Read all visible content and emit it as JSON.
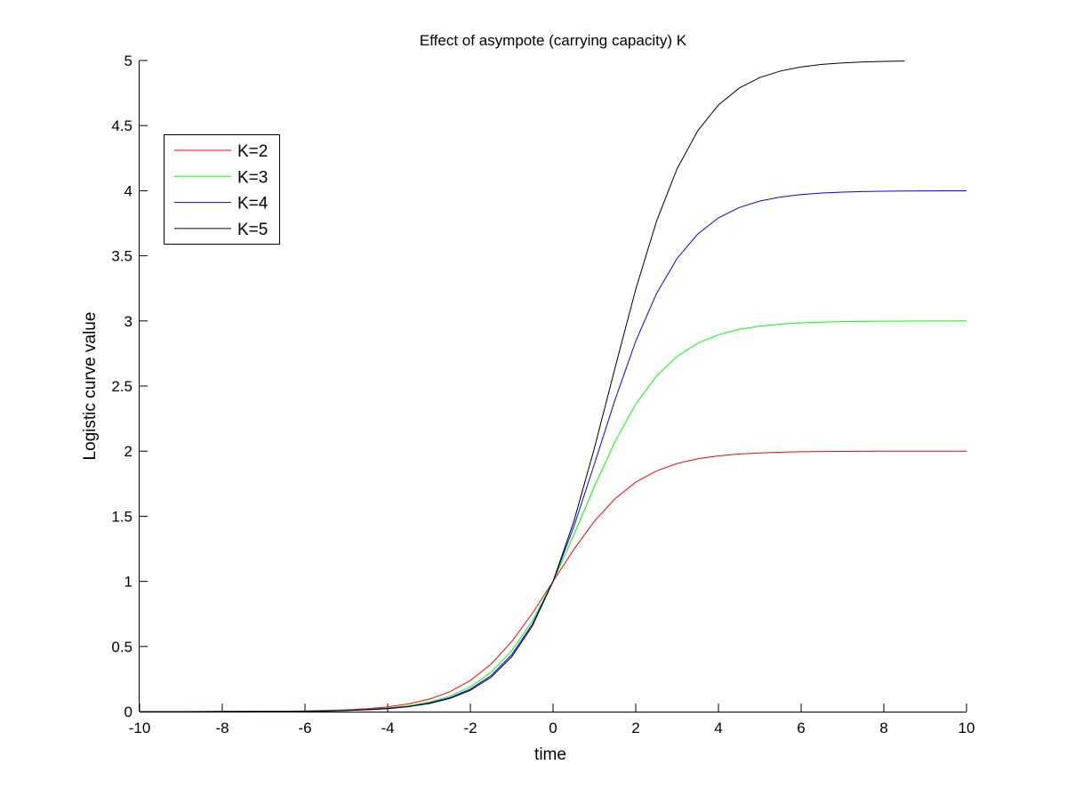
{
  "chart_data": {
    "type": "line",
    "title": "Effect of asympote (carrying capacity) K",
    "xlabel": "time",
    "ylabel": "Logistic curve value",
    "xlim": [
      -10,
      10
    ],
    "ylim": [
      0,
      5
    ],
    "xticks": [
      "-10",
      "-8",
      "-6",
      "-4",
      "-2",
      "0",
      "2",
      "4",
      "6",
      "8",
      "10"
    ],
    "yticks": [
      "0",
      "0.5",
      "1",
      "1.5",
      "2",
      "2.5",
      "3",
      "3.5",
      "4",
      "4.5",
      "5"
    ],
    "grid": false,
    "legend_position": "top-left",
    "x": [
      -10,
      -9.5,
      -9,
      -8.5,
      -8,
      -7.5,
      -7,
      -6.5,
      -6,
      -5.5,
      -5,
      -4.5,
      -4,
      -3.5,
      -3,
      -2.5,
      -2,
      -1.5,
      -1,
      -0.5,
      0,
      0.5,
      1,
      1.5,
      2,
      2.5,
      3,
      3.5,
      4,
      4.5,
      5,
      5.5,
      6,
      6.5,
      7,
      7.5,
      8,
      8.5,
      9,
      9.5,
      10
    ],
    "series": [
      {
        "name": "K=2",
        "color": "#ff0000",
        "values": [
          0.0001,
          0.00015,
          0.00025,
          0.0004,
          0.0007,
          0.0011,
          0.0018,
          0.003,
          0.0049,
          0.0081,
          0.0134,
          0.022,
          0.036,
          0.0587,
          0.0949,
          0.1517,
          0.2384,
          0.3649,
          0.5379,
          0.7551,
          1,
          1.2449,
          1.4621,
          1.6351,
          1.7616,
          1.8483,
          1.9051,
          1.9414,
          1.964,
          1.978,
          1.9866,
          1.9919,
          1.9951,
          1.997,
          1.9982,
          1.9989,
          1.9993,
          1.9996,
          1.9998,
          1.9999,
          1.9999
        ]
      },
      {
        "name": "K=3",
        "color": "#00ff00",
        "values": [
          0.0001,
          0.0001,
          0.0002,
          0.0003,
          0.0005,
          0.0008,
          0.0014,
          0.0023,
          0.0037,
          0.0061,
          0.0101,
          0.0166,
          0.0272,
          0.0446,
          0.0729,
          0.1183,
          0.1901,
          0.3011,
          0.4661,
          0.6981,
          1,
          1.3556,
          1.7283,
          2.0743,
          2.3609,
          2.5769,
          2.7283,
          2.8291,
          2.894,
          2.9348,
          2.9601,
          2.9757,
          2.9852,
          2.991,
          2.9946,
          2.9967,
          2.998,
          2.9988,
          2.9993,
          2.9995,
          2.9997
        ]
      },
      {
        "name": "K=4",
        "color": "#0000ff",
        "values": [
          0.0001,
          0.0001,
          0.0002,
          0.0003,
          0.0004,
          0.0007,
          0.0012,
          0.002,
          0.0033,
          0.0054,
          0.009,
          0.0148,
          0.0243,
          0.0399,
          0.0653,
          0.1065,
          0.1727,
          0.2769,
          0.4369,
          0.6727,
          1,
          1.4187,
          1.9015,
          2.3961,
          2.8449,
          3.2097,
          3.4802,
          3.6677,
          3.7917,
          3.871,
          3.9208,
          3.9516,
          3.9705,
          3.982,
          3.9891,
          3.9934,
          3.996,
          3.9976,
          3.9985,
          3.9991,
          3.9995
        ]
      },
      {
        "name": "K=5",
        "color": "#000000",
        "values": [
          0.0001,
          0.0001,
          0.0002,
          0.0003,
          0.0004,
          0.0007,
          0.0011,
          0.0019,
          0.0031,
          0.0051,
          0.0084,
          0.0138,
          0.0228,
          0.0375,
          0.0615,
          0.1005,
          0.1636,
          0.2642,
          0.4211,
          0.6583,
          1,
          1.4594,
          2.023,
          2.642,
          3.2439,
          3.7642,
          4.1696,
          4.4611,
          4.6587,
          4.7873,
          4.8688,
          4.9196,
          4.9509,
          4.9701,
          4.9818,
          4.989,
          4.9933,
          4.996,
          null,
          null,
          null
        ]
      }
    ]
  }
}
